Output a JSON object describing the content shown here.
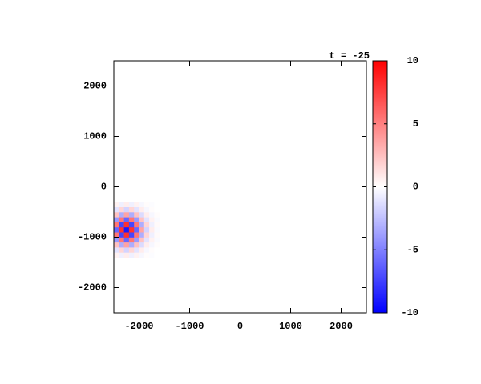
{
  "chart_data": {
    "type": "heatmap",
    "title": "t = -25",
    "x": [
      -2450,
      -2350,
      -2250,
      -2150,
      -2050,
      -1950,
      -1850,
      -1750,
      -1650
    ],
    "y": [
      -1350,
      -1250,
      -1150,
      -1050,
      -950,
      -850,
      -750,
      -650,
      -550,
      -450,
      -350
    ],
    "z": [
      [
        0.5,
        -0.6,
        0.7,
        -0.6,
        0.5,
        -0.3,
        0.1,
        -0.1,
        0
      ],
      [
        -1.1,
        1.6,
        -1.7,
        1.6,
        -1.1,
        0.7,
        -0.3,
        0.1,
        0
      ],
      [
        2.4,
        -3.2,
        3.6,
        -3.2,
        2.4,
        -1.4,
        0.7,
        -0.3,
        0.1
      ],
      [
        -4,
        5.4,
        -6,
        5.4,
        -4,
        2.4,
        -1.1,
        0.5,
        -0.2
      ],
      [
        5.4,
        -7.3,
        8.1,
        -7.3,
        5.4,
        -3.2,
        1.6,
        -0.6,
        0.2
      ],
      [
        -6,
        8.1,
        -9,
        8.1,
        -6,
        3.6,
        -1.7,
        0.7,
        -0.2
      ],
      [
        5.4,
        -7.3,
        8.1,
        -7.3,
        5.4,
        -3.2,
        1.6,
        -0.6,
        0.2
      ],
      [
        -4,
        5.4,
        -6,
        5.4,
        -4,
        2.4,
        -1.1,
        0.5,
        -0.2
      ],
      [
        2.4,
        -3.2,
        3.6,
        -3.2,
        2.4,
        -1.4,
        0.7,
        -0.3,
        0.1
      ],
      [
        -1.1,
        1.6,
        -1.7,
        1.6,
        -1.1,
        0.7,
        -0.3,
        0.1,
        0
      ],
      [
        0.5,
        -0.6,
        0.7,
        -0.6,
        0.5,
        -0.3,
        0.1,
        -0.1,
        0
      ]
    ],
    "cell_size": 100,
    "xlim": [
      -2500,
      2500
    ],
    "xticks": [
      -2000,
      -1000,
      0,
      1000,
      2000
    ],
    "ylim": [
      -2500,
      2500
    ],
    "yticks": [
      -2000,
      -1000,
      0,
      1000,
      2000
    ],
    "zlim": [
      -10,
      10
    ],
    "zticks": [
      -10,
      -5,
      0,
      5,
      10
    ],
    "colors": {
      "low": "#0000ff",
      "mid": "#ffffff",
      "high": "#ff0000"
    }
  }
}
